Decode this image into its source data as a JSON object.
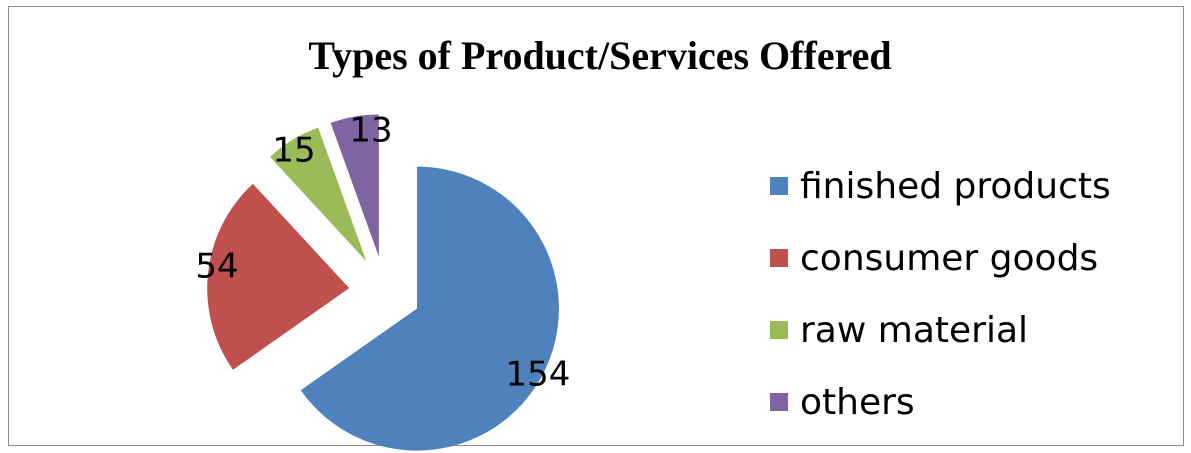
{
  "chart_data": {
    "type": "pie",
    "title": "Types of Product/Services Offered",
    "categories": [
      "finished products",
      "consumer goods",
      "raw material",
      "others"
    ],
    "values": [
      154,
      54,
      15,
      13
    ],
    "colors": [
      "#4F81BD",
      "#C0504D",
      "#9BBB59",
      "#8064A2"
    ],
    "exploded": true,
    "legend_position": "right"
  }
}
